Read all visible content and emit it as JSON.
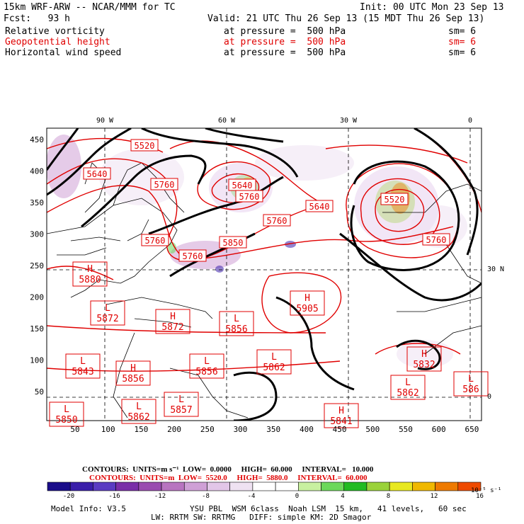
{
  "header": {
    "title": "15km WRF-ARW -- NCAR/MMM for TC",
    "init": "Init: 00 UTC Mon 23 Sep 13",
    "fcst": "Fcst:   93 h",
    "valid": "Valid: 21 UTC Thu 26 Sep 13 (15 MDT Thu 26 Sep 13)",
    "fields": [
      {
        "name": "Relative vorticity",
        "level": "at pressure =  500 hPa",
        "sm": "sm= 6",
        "color": "#000000"
      },
      {
        "name": "Geopotential height",
        "level": "at pressure =  500 hPa",
        "sm": "sm= 6",
        "color": "#e00000"
      },
      {
        "name": "Horizontal wind speed",
        "level": "at pressure =  500 hPa",
        "sm": "sm= 6",
        "color": "#000000"
      }
    ]
  },
  "map": {
    "lon_labels": [
      "90 W",
      "60 W",
      "30 W",
      "0"
    ],
    "lat_labels": [
      "30 N",
      "0"
    ],
    "x_ticks": [
      "50",
      "100",
      "150",
      "200",
      "250",
      "300",
      "350",
      "400",
      "450",
      "500",
      "550",
      "600",
      "650"
    ],
    "y_ticks": [
      "450",
      "400",
      "350",
      "300",
      "250",
      "200",
      "150",
      "100",
      "50"
    ],
    "height_labels": [
      {
        "text": "5520",
        "kind": "plain"
      },
      {
        "text": "5640",
        "kind": "plain"
      },
      {
        "text": "5760",
        "kind": "plain"
      },
      {
        "text": "5640",
        "kind": "plain"
      },
      {
        "text": "5760",
        "kind": "plain"
      },
      {
        "text": "5760",
        "kind": "plain"
      },
      {
        "text": "5760",
        "kind": "plain"
      },
      {
        "text": "5640",
        "kind": "plain"
      },
      {
        "text": "5760",
        "kind": "plain"
      },
      {
        "text": "5520",
        "kind": "plain"
      },
      {
        "text": "5760",
        "kind": "plain"
      },
      {
        "text": "5880",
        "kind": "H"
      },
      {
        "text": "5872",
        "kind": "L"
      },
      {
        "text": "5872",
        "kind": "H"
      },
      {
        "text": "5856",
        "kind": "L"
      },
      {
        "text": "5905",
        "kind": "H"
      },
      {
        "text": "5862",
        "kind": "L"
      },
      {
        "text": "5843",
        "kind": "L"
      },
      {
        "text": "5856",
        "kind": "H"
      },
      {
        "text": "5856",
        "kind": "L"
      },
      {
        "text": "5862",
        "kind": "L"
      },
      {
        "text": "586",
        "kind": "L"
      },
      {
        "text": "5850",
        "kind": "L"
      },
      {
        "text": "5862",
        "kind": "L"
      },
      {
        "text": "5857",
        "kind": "L"
      },
      {
        "text": "5841",
        "kind": "H"
      },
      {
        "text": "5832",
        "kind": "H"
      },
      {
        "text": "5850",
        "kind": "plain"
      }
    ]
  },
  "footer": {
    "contours1": "CONTOURS:  UNITS=m s⁻¹  LOW=  0.0000     HIGH=  60.000     INTERVAL=   10.000",
    "contours2": "CONTOURS:  UNITS=m  LOW=  5520.0     HIGH=  5880.0     INTERVAL=  60.000",
    "colorbar_labels": [
      "-20",
      "-16",
      "-12",
      "-8",
      "-4",
      "0",
      "4",
      "8",
      "12",
      "16"
    ],
    "colorbar_unit": "10⁻⁵ s⁻¹",
    "colorbar_colors": [
      "#1a0d8a",
      "#3a1faa",
      "#5a3cc2",
      "#7a2ea8",
      "#9a4cb0",
      "#b874c0",
      "#cfa0d6",
      "#e2c6e8",
      "#efe2f2",
      "#ffffff",
      "#ffffff",
      "#c8f0a0",
      "#6cd85a",
      "#22bb22",
      "#9ad23a",
      "#e8e820",
      "#f0b800",
      "#ee7a00",
      "#ee4a00"
    ],
    "model_info": "Model Info: V3.5",
    "physics1": "YSU PBL  WSM 6class  Noah LSM  15 km,   41 levels,   60 sec",
    "physics2": "LW: RRTM SW: RRTMG   DIFF: simple KM: 2D Smagor"
  }
}
